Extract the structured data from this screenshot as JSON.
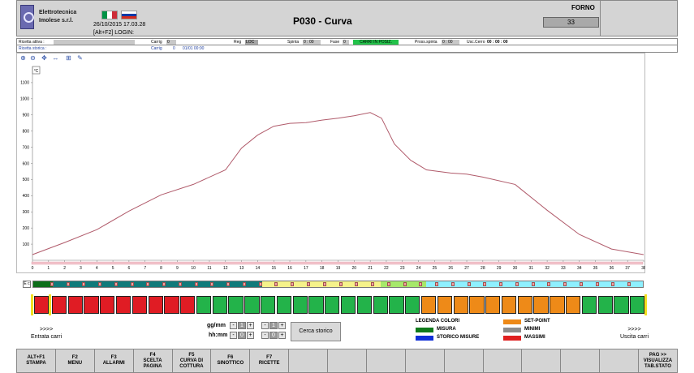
{
  "header": {
    "company": [
      "Elettrotecnica",
      "Imolese s.r.l."
    ],
    "datetime": "26/10/2015 17.03.28",
    "login": "[Alt+F2] LOGIN:",
    "title": "P030 - Curva",
    "forno_label": "FORNO",
    "forno_value": "33"
  },
  "info": {
    "ricetta_attiva_label": "Ricetta attiva :",
    "ricetta_storica_label": "Ricetta storica :",
    "carrig1_label": "Carrig",
    "carrig1_value": "0",
    "carrig2_label": "Carrig",
    "carrig2_value": "0",
    "carrig2_date": "01/01 00:00",
    "reg_label": "Reg",
    "reg_value": "LOC",
    "spinta_label": "Spinta",
    "spinta_value": "0 : 00",
    "fase_label": "Fase",
    "fase_value": "0",
    "status_value": "CARRI IN POSIZ.",
    "pross_label": "Pross.spinta",
    "pross_value": "0 : 00",
    "usc_label": "Usc.Cerro",
    "usc_value": "00 : 00 : 00"
  },
  "chart_data": {
    "type": "line",
    "ylabel": "°C",
    "ylim": [
      0,
      1200
    ],
    "xlim": [
      0,
      38
    ],
    "y_ticks": [
      100,
      200,
      300,
      400,
      500,
      600,
      700,
      800,
      900,
      1000,
      1100
    ],
    "x_ticks": [
      0,
      1,
      2,
      3,
      4,
      5,
      6,
      7,
      8,
      9,
      10,
      11,
      12,
      13,
      14,
      15,
      16,
      17,
      18,
      19,
      20,
      21,
      22,
      23,
      24,
      25,
      26,
      27,
      28,
      29,
      30,
      31,
      32,
      33,
      34,
      35,
      36,
      37,
      38
    ],
    "grid": false,
    "series": [
      {
        "color": "#b05a6a",
        "x": [
          0,
          2,
          4,
          6,
          8,
          10,
          12,
          13,
          14,
          15,
          16,
          17,
          18,
          19,
          20,
          21,
          21.7,
          22.5,
          23.5,
          24.5,
          26,
          27,
          28,
          30,
          32,
          34,
          36,
          38
        ],
        "y": [
          35,
          110,
          190,
          305,
          405,
          470,
          560,
          695,
          775,
          830,
          848,
          852,
          868,
          880,
          895,
          915,
          880,
          720,
          620,
          560,
          540,
          533,
          515,
          470,
          310,
          160,
          70,
          35
        ]
      }
    ]
  },
  "strip": {
    "label": "E c"
  },
  "cells": {
    "count": 38
  },
  "controls": {
    "entrata": ">>>>",
    "entrata_label": "Entrata carri",
    "uscita": ">>>>",
    "uscita_label": "Uscita carri",
    "ggmm_label": "gg/mm",
    "hhmm_label": "hh:mm",
    "gg_value": "1",
    "mm_value": "1",
    "hh_value": "0",
    "min_value": "0",
    "minus": "-",
    "plus": "+",
    "cerca_label": "Cerca storico"
  },
  "legend": {
    "title": "LEGENDA COLORI",
    "items": [
      {
        "label": "MISURA",
        "color": "#0f7a1a"
      },
      {
        "label": "STORICO MISURE",
        "color": "#1030d8"
      },
      {
        "label": "SET-POINT",
        "color": "#ee8a18"
      },
      {
        "label": "MINIMI",
        "color": "#8d8d8d"
      },
      {
        "label": "MASSIMI",
        "color": "#e02020"
      }
    ]
  },
  "fkeys": [
    "ALT+F1\nSTAMPA",
    "F2\nMENU",
    "F3\nALLARMI",
    "F4\nSCELTA\nPAGINA",
    "F5\nCURVA DI\nCOTTURA",
    "F6\nSINOTTICO",
    "F7\nRICETTE",
    "",
    "",
    "",
    "",
    "",
    "",
    "",
    "",
    "",
    "PAG >>\nVISUALIZZA\nTAB.STATO"
  ]
}
